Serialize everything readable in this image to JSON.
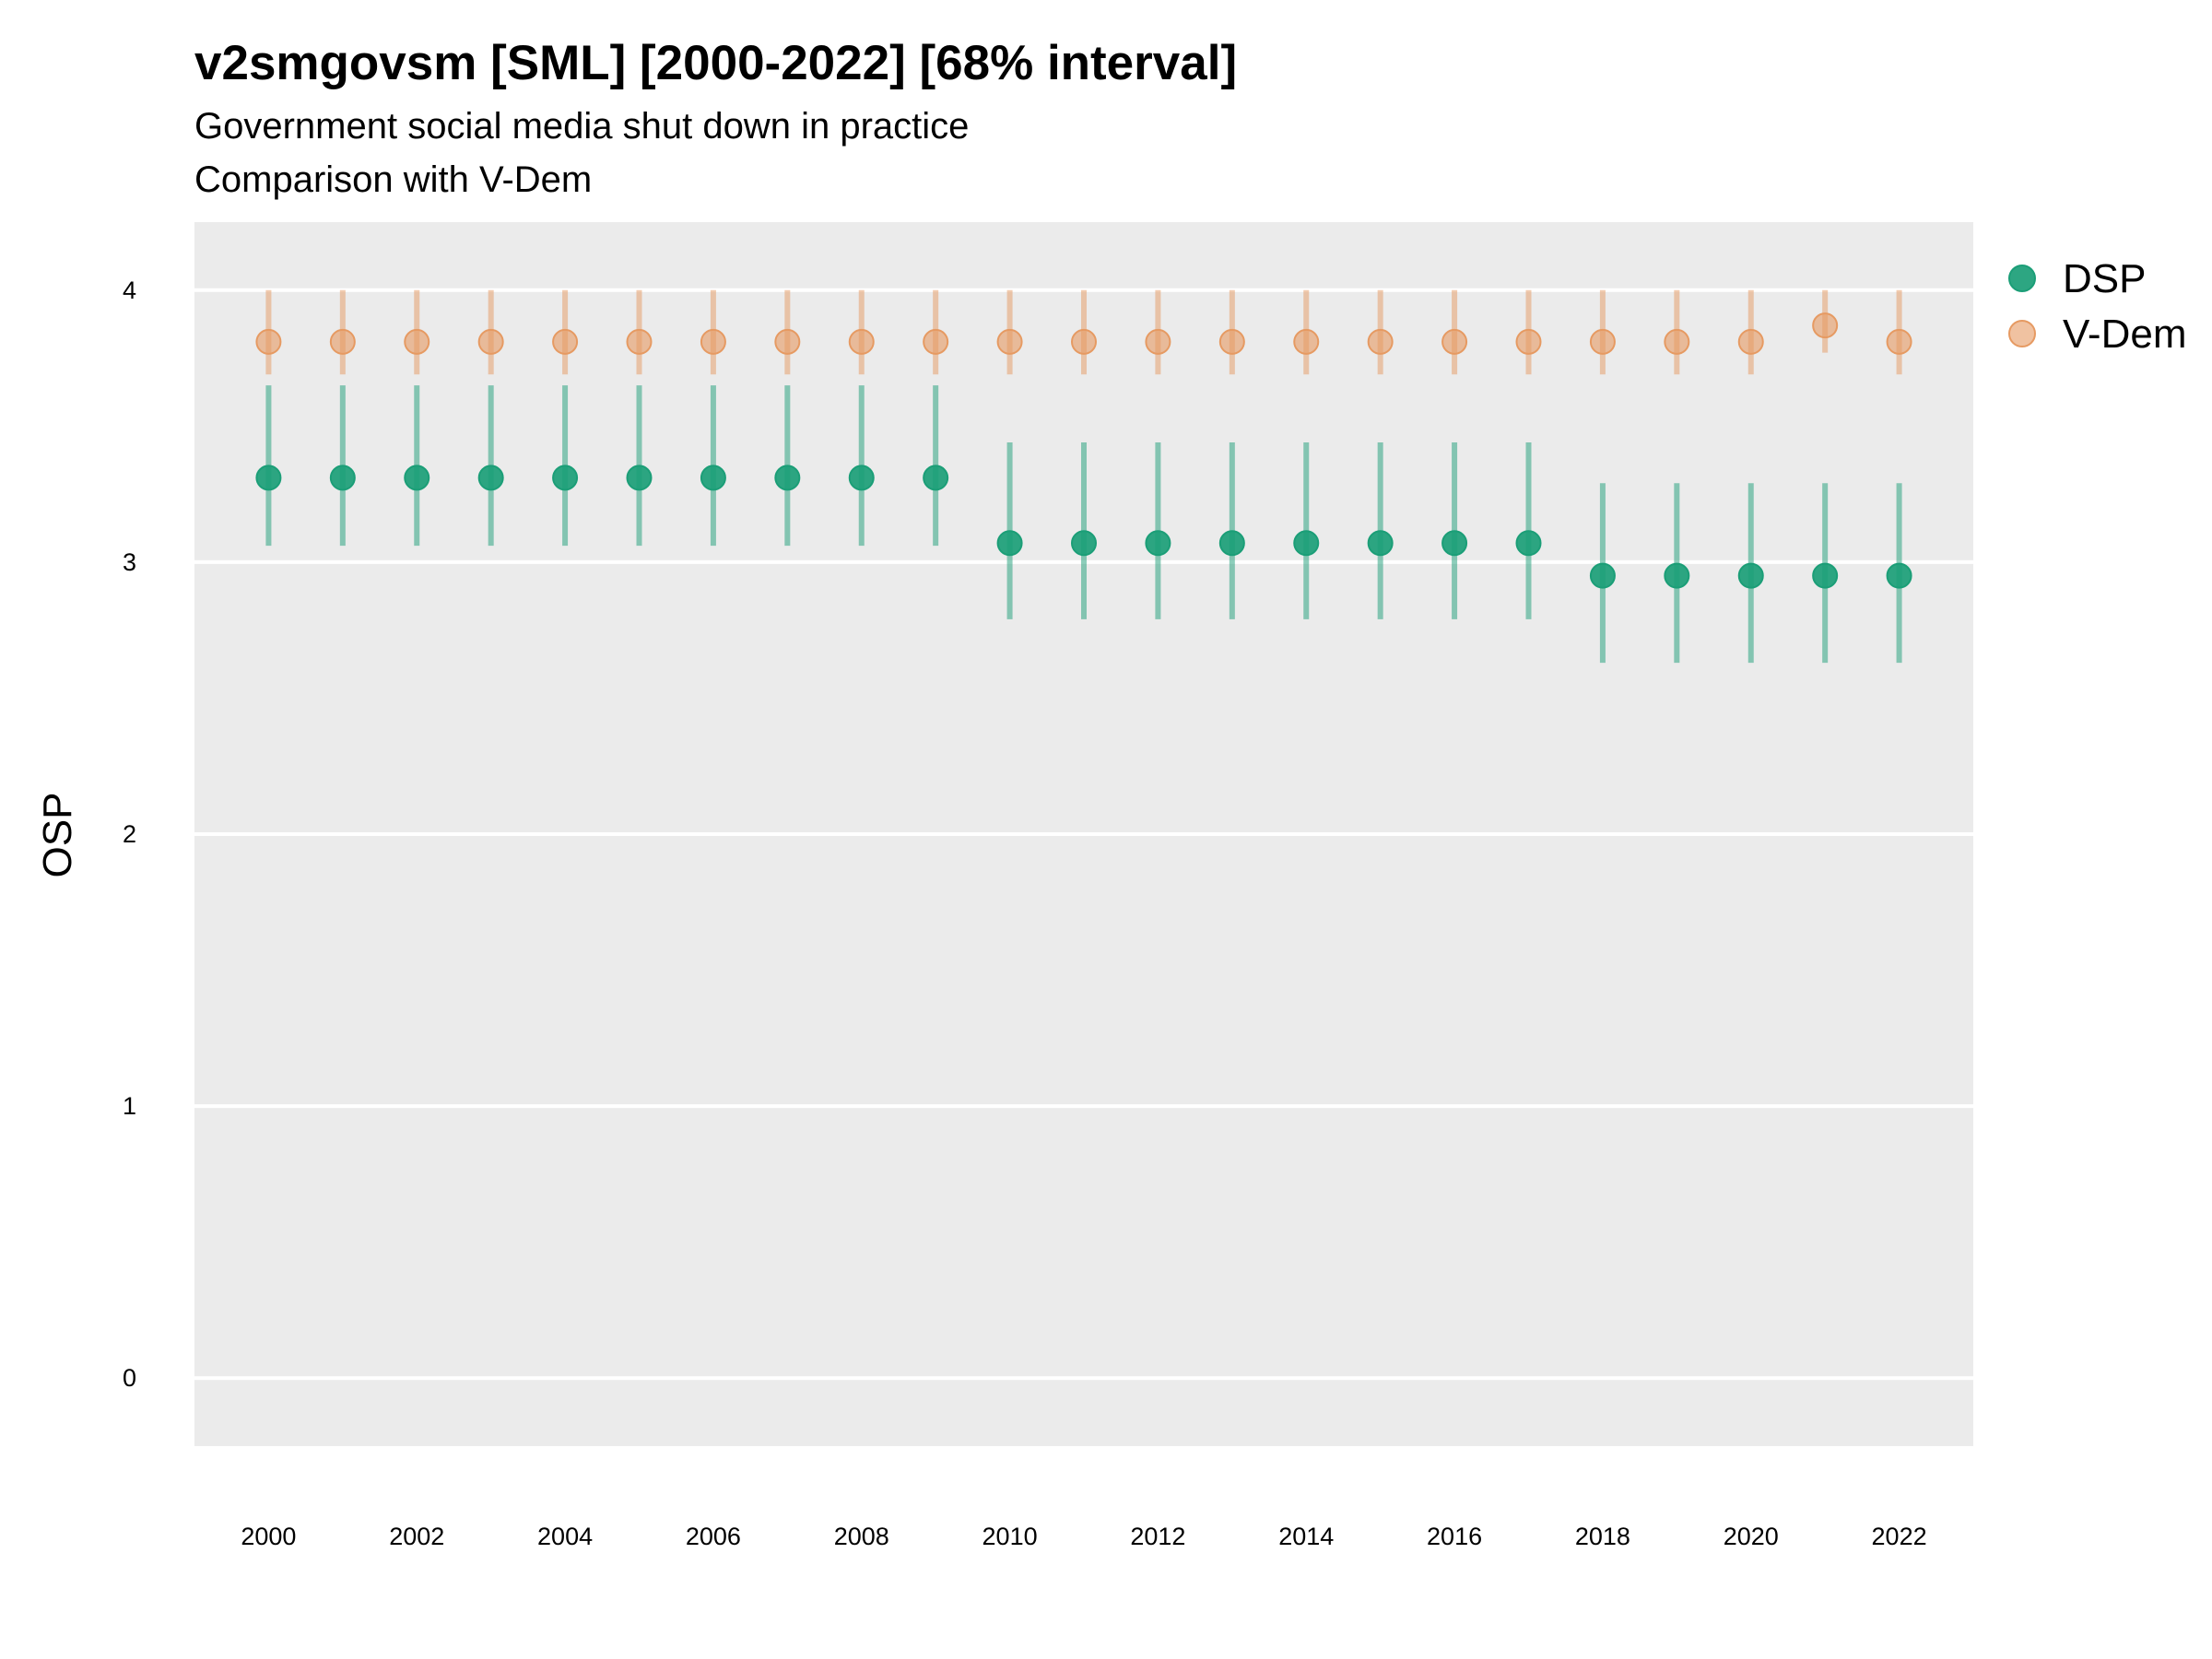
{
  "chart_data": {
    "type": "scatter",
    "title": "v2smgovsm [SML] [2000-2022] [68% interval]",
    "subtitle": [
      "Government social media shut down in practice",
      "Comparison with V-Dem"
    ],
    "xlabel": "",
    "ylabel": "OSP",
    "ylim": [
      -0.25,
      4.25
    ],
    "xlim": [
      1999.0,
      2023.0
    ],
    "yticks": [
      0,
      1,
      2,
      3,
      4
    ],
    "xticks": [
      2000,
      2002,
      2004,
      2006,
      2008,
      2010,
      2012,
      2014,
      2016,
      2018,
      2020,
      2022
    ],
    "grid": true,
    "legend_position": "right",
    "x": [
      2000,
      2001,
      2002,
      2003,
      2004,
      2005,
      2006,
      2007,
      2008,
      2009,
      2010,
      2011,
      2012,
      2013,
      2014,
      2015,
      2016,
      2017,
      2018,
      2019,
      2020,
      2021,
      2022
    ],
    "series": [
      {
        "name": "DSP",
        "color": "#1b9e77",
        "values": [
          3.31,
          3.31,
          3.31,
          3.31,
          3.31,
          3.31,
          3.31,
          3.31,
          3.31,
          3.31,
          3.07,
          3.07,
          3.07,
          3.07,
          3.07,
          3.07,
          3.07,
          3.07,
          2.95,
          2.95,
          2.95,
          2.95,
          2.95
        ],
        "lower": [
          3.06,
          3.06,
          3.06,
          3.06,
          3.06,
          3.06,
          3.06,
          3.06,
          3.06,
          3.06,
          2.79,
          2.79,
          2.79,
          2.79,
          2.79,
          2.79,
          2.79,
          2.79,
          2.63,
          2.63,
          2.63,
          2.63,
          2.63
        ],
        "upper": [
          3.65,
          3.65,
          3.65,
          3.65,
          3.65,
          3.65,
          3.65,
          3.65,
          3.65,
          3.65,
          3.44,
          3.44,
          3.44,
          3.44,
          3.44,
          3.44,
          3.44,
          3.44,
          3.29,
          3.29,
          3.29,
          3.29,
          3.29
        ]
      },
      {
        "name": "V-Dem",
        "color": "#e69a62",
        "values": [
          3.81,
          3.81,
          3.81,
          3.81,
          3.81,
          3.81,
          3.81,
          3.81,
          3.81,
          3.81,
          3.81,
          3.81,
          3.81,
          3.81,
          3.81,
          3.81,
          3.81,
          3.81,
          3.81,
          3.81,
          3.81,
          3.87,
          3.81
        ],
        "lower": [
          3.69,
          3.69,
          3.69,
          3.69,
          3.69,
          3.69,
          3.69,
          3.69,
          3.69,
          3.69,
          3.69,
          3.69,
          3.69,
          3.69,
          3.69,
          3.69,
          3.69,
          3.69,
          3.69,
          3.69,
          3.69,
          3.77,
          3.69
        ],
        "upper": [
          4.0,
          4.0,
          4.0,
          4.0,
          4.0,
          4.0,
          4.0,
          4.0,
          4.0,
          4.0,
          4.0,
          4.0,
          4.0,
          4.0,
          4.0,
          4.0,
          4.0,
          4.0,
          4.0,
          4.0,
          4.0,
          4.0,
          4.0
        ]
      }
    ]
  }
}
